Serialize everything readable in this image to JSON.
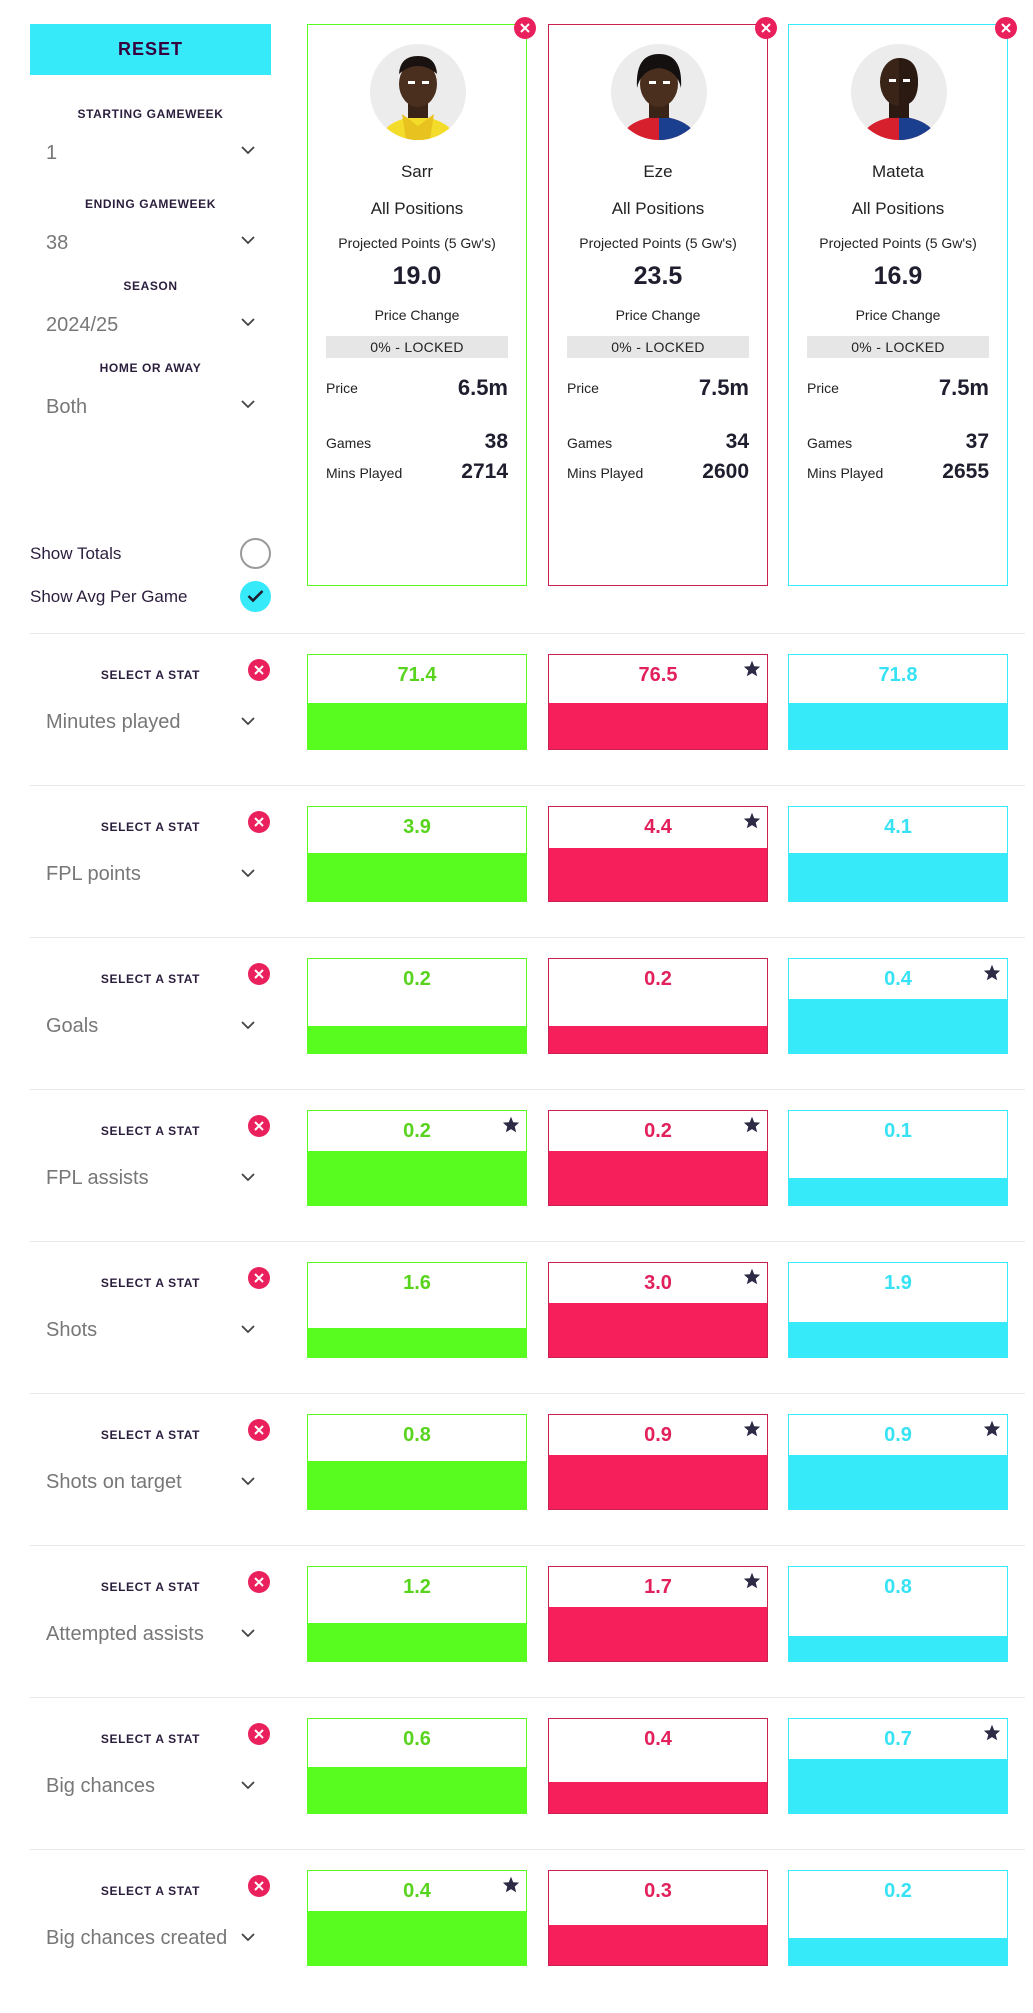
{
  "filters": {
    "reset_label": "RESET",
    "starting_gameweek": {
      "label": "STARTING GAMEWEEK",
      "value": "1"
    },
    "ending_gameweek": {
      "label": "ENDING GAMEWEEK",
      "value": "38"
    },
    "season": {
      "label": "SEASON",
      "value": "2024/25"
    },
    "home_or_away": {
      "label": "HOME OR AWAY",
      "value": "Both"
    },
    "show_totals": {
      "label": "Show Totals",
      "checked": false
    },
    "show_avg": {
      "label": "Show Avg Per Game",
      "checked": true
    }
  },
  "colors": {
    "sarr": "#58fc1e",
    "eze": "#f61f5b",
    "mateta": "#37eafa",
    "accent": "#37eafa",
    "remove": "#e9205c"
  },
  "players": [
    {
      "name": "Sarr",
      "position": "All Positions",
      "projected_label": "Projected Points (5 Gw's)",
      "projected": "19.0",
      "price_change_label": "Price Change",
      "price_change": "0% - LOCKED",
      "price_label": "Price",
      "price": "6.5m",
      "games_label": "Games",
      "games": "38",
      "mins_label": "Mins Played",
      "mins": "2714"
    },
    {
      "name": "Eze",
      "position": "All Positions",
      "projected_label": "Projected Points (5 Gw's)",
      "projected": "23.5",
      "price_change_label": "Price Change",
      "price_change": "0% - LOCKED",
      "price_label": "Price",
      "price": "7.5m",
      "games_label": "Games",
      "games": "34",
      "mins_label": "Mins Played",
      "mins": "2600"
    },
    {
      "name": "Mateta",
      "position": "All Positions",
      "projected_label": "Projected Points (5 Gw's)",
      "projected": "16.9",
      "price_change_label": "Price Change",
      "price_change": "0% - LOCKED",
      "price_label": "Price",
      "price": "7.5m",
      "games_label": "Games",
      "games": "37",
      "mins_label": "Mins Played",
      "mins": "2655"
    }
  ],
  "stats": [
    {
      "label": "SELECT A STAT",
      "name": "Minutes played",
      "values": [
        "71.4",
        "76.5",
        "71.8"
      ],
      "fill": [
        0.48,
        0.48,
        0.48
      ],
      "star": [
        false,
        true,
        false
      ]
    },
    {
      "label": "SELECT A STAT",
      "name": "FPL points",
      "values": [
        "3.9",
        "4.4",
        "4.1"
      ],
      "fill": [
        0.5,
        0.55,
        0.5
      ],
      "star": [
        false,
        true,
        false
      ]
    },
    {
      "label": "SELECT A STAT",
      "name": "Goals",
      "values": [
        "0.2",
        "0.2",
        "0.4"
      ],
      "fill": [
        0.28,
        0.28,
        0.56
      ],
      "star": [
        false,
        false,
        true
      ]
    },
    {
      "label": "SELECT A STAT",
      "name": "FPL assists",
      "values": [
        "0.2",
        "0.2",
        "0.1"
      ],
      "fill": [
        0.56,
        0.56,
        0.28
      ],
      "star": [
        true,
        true,
        false
      ]
    },
    {
      "label": "SELECT A STAT",
      "name": "Shots",
      "values": [
        "1.6",
        "3.0",
        "1.9"
      ],
      "fill": [
        0.3,
        0.56,
        0.36
      ],
      "star": [
        false,
        true,
        false
      ]
    },
    {
      "label": "SELECT A STAT",
      "name": "Shots on target",
      "values": [
        "0.8",
        "0.9",
        "0.9"
      ],
      "fill": [
        0.5,
        0.56,
        0.56
      ],
      "star": [
        false,
        true,
        true
      ]
    },
    {
      "label": "SELECT A STAT",
      "name": "Attempted assists",
      "values": [
        "1.2",
        "1.7",
        "0.8"
      ],
      "fill": [
        0.4,
        0.56,
        0.26
      ],
      "star": [
        false,
        true,
        false
      ]
    },
    {
      "label": "SELECT A STAT",
      "name": "Big chances",
      "values": [
        "0.6",
        "0.4",
        "0.7"
      ],
      "fill": [
        0.48,
        0.32,
        0.56
      ],
      "star": [
        false,
        false,
        true
      ]
    },
    {
      "label": "SELECT A STAT",
      "name": "Big chances created",
      "values": [
        "0.4",
        "0.3",
        "0.2"
      ],
      "fill": [
        0.56,
        0.42,
        0.28
      ],
      "star": [
        true,
        false,
        false
      ]
    }
  ]
}
